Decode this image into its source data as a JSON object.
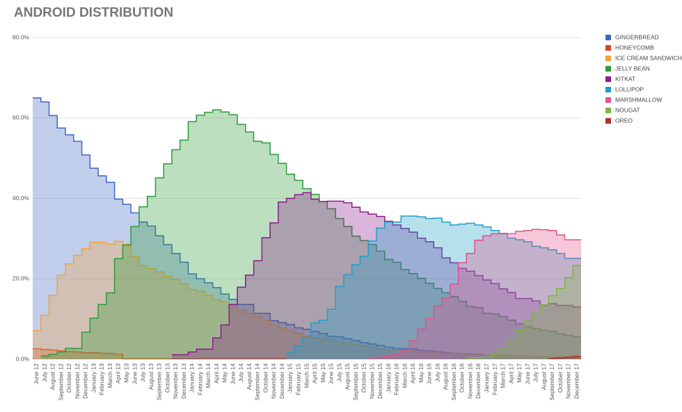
{
  "chart_data": {
    "type": "step-area",
    "title": "ANDROID DISTRIBUTION",
    "categories": [
      "June 12",
      "July 12",
      "August 12",
      "September 12",
      "October 12",
      "November 12",
      "December 12",
      "January 13",
      "February 13",
      "March 13",
      "April 13",
      "May 13",
      "June 13",
      "July 13",
      "August 13",
      "September 13",
      "October 13",
      "November 13",
      "December 13",
      "January 14",
      "February 14",
      "March 14",
      "April 14",
      "May 14",
      "June 14",
      "July 14",
      "August 14",
      "September 14",
      "October 14",
      "November 14",
      "December 14",
      "January 15",
      "February 15",
      "March 15",
      "April 15",
      "May 15",
      "June 15",
      "July 15",
      "August 15",
      "September 15",
      "October 15",
      "November 15",
      "December 15",
      "January 16",
      "February 16",
      "March 16",
      "April 16",
      "May 16",
      "June 16",
      "July 16",
      "August 16",
      "September 16",
      "October 16",
      "November 16",
      "December 16",
      "January 17",
      "February 17",
      "March 17",
      "April 17",
      "May 17",
      "June 17",
      "July 17",
      "August 17",
      "September 17",
      "October 17",
      "November 17",
      "December 17"
    ],
    "ylim": [
      0,
      80
    ],
    "yticks": [
      {
        "value": 0,
        "label": "0.0%"
      },
      {
        "value": 20,
        "label": "20.0%"
      },
      {
        "value": 40,
        "label": "40.0%"
      },
      {
        "value": 60,
        "label": "60.0%"
      },
      {
        "value": 80,
        "label": "80.0%"
      }
    ],
    "grid": true,
    "legend": "right",
    "series": [
      {
        "name": "GINGERBREAD",
        "color": "#3f66c4",
        "values": [
          65,
          64,
          60.6,
          57.5,
          55.8,
          54.2,
          50.8,
          47.5,
          45.6,
          44,
          39.8,
          38.5,
          36.4,
          34.1,
          33.1,
          30.7,
          28.5,
          26.3,
          24.1,
          21.2,
          20,
          19,
          17.8,
          16.2,
          14.9,
          13.6,
          13.6,
          11.4,
          11.4,
          9.6,
          9.1,
          8.6,
          7.8,
          7.4,
          6.9,
          6.4,
          5.7,
          5.6,
          5.1,
          4.6,
          4.1,
          3.8,
          3.4,
          3.0,
          2.7,
          2.6,
          2.6,
          2.2,
          2.1,
          1.9,
          1.7,
          1.5,
          1.3,
          1.3,
          1.2,
          1.0,
          1.0,
          1.0,
          0.9,
          0.8,
          0.8,
          0.6,
          0.6,
          0.6,
          0.5,
          0.5,
          0.5
        ]
      },
      {
        "name": "HONEYCOMB",
        "color": "#d4452a",
        "values": [
          2.6,
          2.4,
          2.3,
          2.1,
          1.9,
          1.8,
          1.6,
          1.6,
          1.5,
          1.4,
          1.2,
          0.1,
          0.1,
          0.1,
          0.1,
          0.1,
          0.1,
          0.1,
          0.1,
          0.1,
          0.1,
          0.1,
          0.1,
          0.1,
          0.1,
          0.1,
          0.1,
          0.1,
          0.1,
          0.1,
          0.1,
          null,
          null,
          null,
          null,
          null,
          null,
          null,
          null,
          null,
          null,
          null,
          null,
          null,
          null,
          null,
          null,
          null,
          null,
          null,
          null,
          null,
          null,
          null,
          null,
          null,
          null,
          null,
          null,
          null,
          null,
          null,
          null,
          null,
          null,
          null,
          null
        ]
      },
      {
        "name": "ICE CREAM SANDWICH",
        "color": "#f2a23a",
        "values": [
          7.1,
          10.9,
          15.9,
          20.9,
          23.7,
          25.8,
          27.5,
          29.1,
          29,
          28.6,
          29.3,
          28.6,
          25.6,
          23.3,
          22.5,
          21.7,
          20.6,
          19.8,
          18.8,
          17.3,
          16.9,
          15.9,
          14.8,
          14.3,
          13.4,
          12.3,
          11.4,
          10.6,
          9.6,
          8.5,
          7.8,
          7.0,
          6.4,
          5.7,
          5.3,
          5.1,
          4.9,
          4.2,
          4.0,
          3.6,
          3.3,
          2.9,
          2.5,
          2.3,
          2.2,
          2.2,
          2.0,
          1.9,
          1.8,
          1.6,
          1.5,
          1.4,
          1.3,
          1.2,
          1.1,
          1.0,
          1.0,
          1.0,
          0.9,
          0.8,
          0.8,
          0.7,
          0.7,
          0.6,
          0.6,
          0.6,
          0.5
        ]
      },
      {
        "name": "JELLY BEAN",
        "color": "#2e9a38",
        "values": [
          null,
          0.8,
          1.2,
          1.8,
          2.7,
          2.7,
          6.7,
          10.2,
          13.6,
          16.5,
          25,
          28.4,
          33,
          37.9,
          40.5,
          45.1,
          48.6,
          52.1,
          54.5,
          59.1,
          60.7,
          61.4,
          62,
          61.5,
          60.8,
          58.4,
          56.5,
          54.2,
          53.8,
          50.9,
          48.7,
          46,
          44.5,
          42.4,
          41,
          39.2,
          37.4,
          35,
          33,
          30.6,
          29.5,
          28.5,
          26.9,
          24.8,
          24.1,
          22.3,
          21.3,
          20.1,
          18.9,
          17.6,
          16.5,
          15.6,
          14.4,
          13.1,
          12.8,
          11.4,
          11.3,
          10.6,
          9.7,
          8.8,
          8.1,
          7.6,
          7.2,
          6.9,
          6.3,
          5.9,
          5.6
        ]
      },
      {
        "name": "KITKAT",
        "color": "#8a1b8c",
        "values": [
          null,
          null,
          null,
          null,
          null,
          null,
          null,
          null,
          null,
          null,
          null,
          null,
          null,
          null,
          null,
          null,
          null,
          1.1,
          1.1,
          1.8,
          2.5,
          2.5,
          5.3,
          8.5,
          13.6,
          17.9,
          20.9,
          24.5,
          30.2,
          33.9,
          39.1,
          40,
          40.9,
          41.4,
          39.8,
          39.2,
          39.3,
          39.3,
          38.9,
          37.8,
          36.6,
          36.1,
          35.5,
          34.3,
          33.4,
          32.5,
          31.6,
          30.1,
          29.2,
          27.7,
          25.2,
          24.0,
          22.6,
          21.9,
          20.8,
          19.7,
          18.8,
          17.5,
          16.6,
          15.1,
          15.1,
          14.5,
          13.4,
          13.8,
          13.4,
          13.4,
          13.0
        ]
      },
      {
        "name": "LOLLIPOP",
        "color": "#1e9fc7",
        "values": [
          null,
          null,
          null,
          null,
          null,
          null,
          null,
          null,
          null,
          null,
          null,
          null,
          null,
          null,
          null,
          null,
          null,
          null,
          null,
          null,
          null,
          null,
          null,
          null,
          null,
          null,
          null,
          null,
          null,
          null,
          null,
          1.6,
          3.3,
          5.4,
          9.0,
          9.7,
          12.4,
          18.1,
          21.0,
          23.5,
          25.6,
          29.4,
          32.6,
          34.1,
          34.1,
          35.6,
          35.6,
          35.4,
          35.0,
          35.1,
          34.1,
          33.4,
          33.6,
          33.8,
          33.4,
          32.9,
          32.0,
          31.2,
          30.1,
          29.7,
          29.2,
          28.1,
          27.7,
          27.2,
          26.3,
          25.1,
          25.1
        ]
      },
      {
        "name": "MARSHMALLOW",
        "color": "#e0528a",
        "values": [
          null,
          null,
          null,
          null,
          null,
          null,
          null,
          null,
          null,
          null,
          null,
          null,
          null,
          null,
          null,
          null,
          null,
          null,
          null,
          null,
          null,
          null,
          null,
          null,
          null,
          null,
          null,
          null,
          null,
          null,
          null,
          null,
          null,
          null,
          null,
          null,
          null,
          null,
          null,
          null,
          null,
          0.3,
          0.5,
          0.7,
          1.2,
          2.3,
          4.6,
          7.5,
          10.1,
          13.3,
          15.2,
          18.7,
          24.0,
          26.3,
          29.6,
          30.7,
          31.2,
          31.3,
          31.2,
          31.8,
          32.0,
          32.3,
          32.2,
          32.0,
          30.9,
          29.7,
          29.7
        ]
      },
      {
        "name": "NOUGAT",
        "color": "#7db343",
        "values": [
          null,
          null,
          null,
          null,
          null,
          null,
          null,
          null,
          null,
          null,
          null,
          null,
          null,
          null,
          null,
          null,
          null,
          null,
          null,
          null,
          null,
          null,
          null,
          null,
          null,
          null,
          null,
          null,
          null,
          null,
          null,
          null,
          null,
          null,
          null,
          null,
          null,
          null,
          null,
          null,
          null,
          null,
          null,
          null,
          null,
          null,
          null,
          null,
          null,
          null,
          null,
          null,
          null,
          0.3,
          0.4,
          0.5,
          1.2,
          2.8,
          4.9,
          7.1,
          9.5,
          11.5,
          13.5,
          15.8,
          17.6,
          20.3,
          23.3
        ]
      },
      {
        "name": "OREO",
        "color": "#b0302e",
        "values": [
          null,
          null,
          null,
          null,
          null,
          null,
          null,
          null,
          null,
          null,
          null,
          null,
          null,
          null,
          null,
          null,
          null,
          null,
          null,
          null,
          null,
          null,
          null,
          null,
          null,
          null,
          null,
          null,
          null,
          null,
          null,
          null,
          null,
          null,
          null,
          null,
          null,
          null,
          null,
          null,
          null,
          null,
          null,
          null,
          null,
          null,
          null,
          null,
          null,
          null,
          null,
          null,
          null,
          null,
          null,
          null,
          null,
          null,
          null,
          null,
          null,
          null,
          null,
          0.2,
          0.3,
          0.5,
          0.7
        ]
      }
    ]
  }
}
